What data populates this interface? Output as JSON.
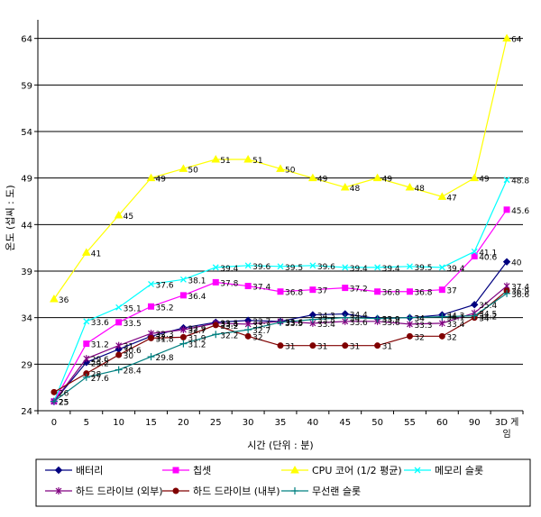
{
  "chart_data": {
    "type": "line",
    "xlabel": "시간 (단위 : 분)",
    "ylabel": "온도 (섭씨 : 도)",
    "categories": [
      "0",
      "5",
      "10",
      "15",
      "20",
      "25",
      "30",
      "35",
      "40",
      "45",
      "50",
      "55",
      "60",
      "90",
      "3D 게임"
    ],
    "ylim": [
      24,
      66
    ],
    "yticks": [
      24,
      29,
      34,
      39,
      44,
      49,
      54,
      59,
      64
    ],
    "grid": true,
    "legend_position": "bottom",
    "series": [
      {
        "name": "배터리",
        "color": "#000080",
        "marker": "diamond",
        "values": [
          25,
          29.2,
          30.6,
          32,
          32.9,
          33.5,
          33.7,
          33.6,
          34.3,
          34.4,
          33.9,
          34,
          34.3,
          35.4,
          40
        ],
        "labels": [
          "25",
          "29.2",
          "30.6",
          "32",
          "32.9",
          "33.5",
          "33.7",
          "33.6",
          "34.3",
          "34.4",
          "33.9",
          "34",
          "34.3",
          "35.4",
          "40"
        ]
      },
      {
        "name": "칩셋",
        "color": "#ff00ff",
        "marker": "square",
        "values": [
          25,
          31.2,
          33.5,
          35.2,
          36.4,
          37.8,
          37.4,
          36.8,
          37,
          37.2,
          36.8,
          36.8,
          37,
          40.6,
          45.6
        ],
        "labels": [
          "25",
          "31.2",
          "33.5",
          "35.2",
          "36.4",
          "37.8",
          "37.4",
          "36.8",
          "37",
          "37.2",
          "36.8",
          "36.8",
          "37",
          "40.6",
          "45.6"
        ]
      },
      {
        "name": "CPU 코어 (1/2 평균)",
        "color": "#ffff00",
        "marker": "triangle",
        "values": [
          36,
          41,
          45,
          49,
          50,
          51,
          51,
          50,
          49,
          48,
          49,
          48,
          47,
          49,
          64
        ],
        "labels": [
          "36",
          "41",
          "45",
          "49",
          "50",
          "51",
          "51",
          "50",
          "49",
          "48",
          "49",
          "48",
          "47",
          "49",
          "64"
        ]
      },
      {
        "name": "메모리 슬롯",
        "color": "#00ffff",
        "marker": "x",
        "values": [
          25,
          33.6,
          35.1,
          37.6,
          38.1,
          39.4,
          39.6,
          39.5,
          39.6,
          39.4,
          39.4,
          39.5,
          39.4,
          41.1,
          48.8
        ],
        "labels": [
          "25",
          "33.6",
          "35.1",
          "37.6",
          "38.1",
          "39.4",
          "39.6",
          "39.5",
          "39.6",
          "39.4",
          "39.4",
          "39.5",
          "39.4",
          "41.1",
          "48.8"
        ]
      },
      {
        "name": "하드 드라이브 (외부)",
        "color": "#800080",
        "marker": "star",
        "values": [
          25,
          29.6,
          31,
          32.3,
          32.7,
          33.4,
          33.3,
          33.6,
          33.4,
          33.6,
          33.6,
          33.3,
          33.4,
          34.5,
          37.4
        ],
        "labels": [
          "25",
          "29.6",
          "31",
          "32.3",
          "32.7",
          "33.4",
          "33.3",
          "33.6",
          "33.4",
          "33.6",
          "33.6",
          "33.3",
          "33.4",
          "34.5",
          "37.4"
        ]
      },
      {
        "name": "하드 드라이브 (내부)",
        "color": "#800000",
        "marker": "circle",
        "values": [
          26,
          28,
          30,
          31.8,
          31.9,
          33.2,
          32,
          31,
          31,
          31,
          31,
          32,
          32,
          34,
          36.9
        ],
        "labels": [
          "26",
          "28",
          "30",
          "31.8",
          "31.9",
          "33.2",
          "32",
          "31",
          "31",
          "31",
          "31",
          "32",
          "32",
          "34",
          "36.9"
        ]
      },
      {
        "name": "무선랜 슬롯",
        "color": "#008080",
        "marker": "plus",
        "values": [
          25,
          27.6,
          28.4,
          29.8,
          31.2,
          32.2,
          32.7,
          33.5,
          33.8,
          34,
          33.9,
          34,
          34.1,
          34.2,
          36.6
        ],
        "labels": [
          "25",
          "27.6",
          "28.4",
          "29.8",
          "31.2",
          "32.2",
          "32.7",
          "33.5",
          "33.8",
          "34",
          "33.9",
          "34",
          "34.1",
          "34.2",
          "36.6"
        ]
      }
    ]
  }
}
